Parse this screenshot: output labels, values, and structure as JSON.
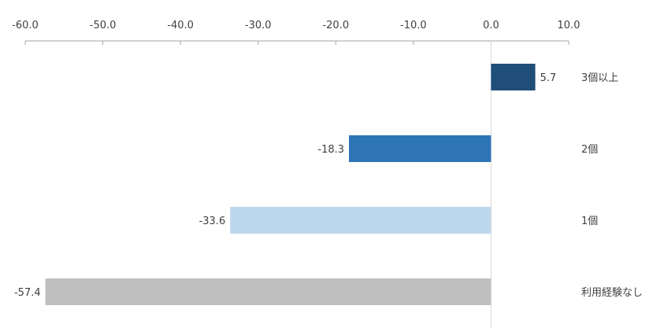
{
  "chart_data": {
    "type": "bar",
    "orientation": "horizontal",
    "x_axis_position": "top",
    "xlim": [
      -60,
      10
    ],
    "x_ticks": [
      -60,
      -50,
      -40,
      -30,
      -20,
      -10,
      0,
      10
    ],
    "x_tick_labels": [
      "-60.0",
      "-50.0",
      "-40.0",
      "-30.0",
      "-20.0",
      "-10.0",
      "0.0",
      "10.0"
    ],
    "grid": false,
    "categories": [
      "3個以上",
      "2個",
      "1個",
      "利用経験なし"
    ],
    "values": [
      5.7,
      -18.3,
      -33.6,
      -57.4
    ],
    "data_labels": [
      "5.7",
      "-18.3",
      "-33.6",
      "-57.4"
    ],
    "colors": [
      "#1f4e79",
      "#2e75b6",
      "#bdd7ee",
      "#bfbfbf"
    ]
  }
}
